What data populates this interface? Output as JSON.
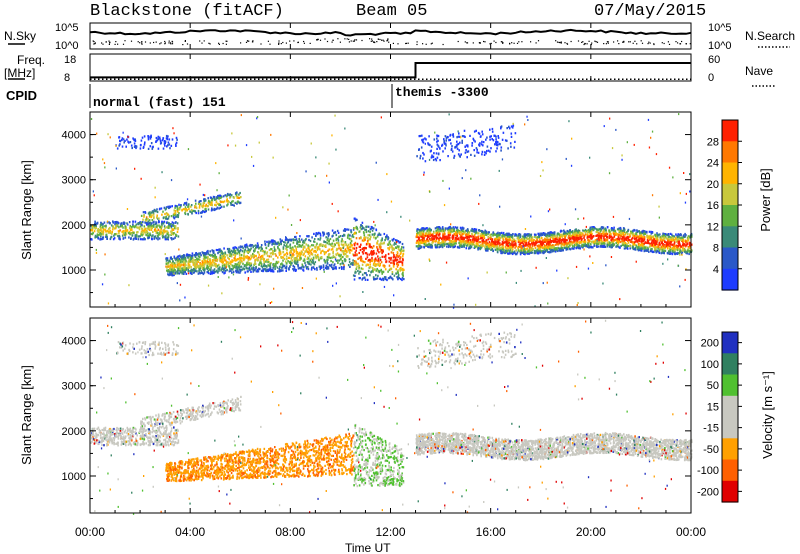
{
  "header": {
    "station": "Blackstone (fitACF)",
    "beam": "Beam 05",
    "date": "07/May/2015"
  },
  "left_labels": {
    "nsky": "N.Sky",
    "freq": "Freq.",
    "freq_unit": "[MHz]",
    "cpid": "CPID"
  },
  "right_labels": {
    "nsearch": "N.Search",
    "nave": "Nave"
  },
  "cpid_segments": [
    {
      "label": "normal (fast) 151",
      "start_hour": 0
    },
    {
      "label": "themis -3300",
      "start_hour": 12.25
    }
  ],
  "x_axis": {
    "label": "Time UT",
    "ticks": [
      "00:00",
      "04:00",
      "08:00",
      "12:00",
      "16:00",
      "20:00",
      "00:00"
    ]
  },
  "panels": {
    "power": {
      "ylabel": "Slant Range [km]",
      "cbar_label": "Power [dB]"
    },
    "velocity": {
      "ylabel": "Slant Range [km]",
      "cbar_label": "Velocity [m s⁻¹]"
    }
  },
  "colors": {
    "power_scale": [
      "#1e3cff",
      "#2a58c8",
      "#3a8a78",
      "#5fb040",
      "#c8c83c",
      "#ffb400",
      "#ff7800",
      "#ff2000"
    ],
    "velocity_scale": [
      "#2030c0",
      "#308060",
      "#50c030",
      "#c8c8c0",
      "#c8c8c0",
      "#ffa000",
      "#ff6000",
      "#e00000"
    ]
  },
  "chart_data": [
    {
      "type": "line",
      "name": "nsky_nsearch",
      "title": "",
      "left_ticks": [
        "10^5",
        "10^0"
      ],
      "right_ticks": [
        "10^5",
        "10^0"
      ],
      "series": [
        {
          "name": "N.Sky",
          "style": "solid"
        },
        {
          "name": "N.Search",
          "style": "dotted"
        }
      ]
    },
    {
      "type": "line",
      "name": "freq_nave",
      "left_ticks": [
        "18",
        "8"
      ],
      "right_ticks": [
        "60",
        "0"
      ],
      "x": [
        0,
        13,
        13,
        24
      ],
      "series": [
        {
          "name": "Freq.",
          "values": [
            10,
            10,
            18,
            18
          ]
        },
        {
          "name": "Nave",
          "values": [
            4,
            4,
            4,
            4
          ]
        }
      ]
    },
    {
      "type": "heatmap",
      "name": "power",
      "xlim": [
        0,
        24
      ],
      "ylim": [
        180,
        4500
      ],
      "yticks": [
        "1000",
        "2000",
        "3000",
        "4000"
      ],
      "colorbar": {
        "label": "Power [dB]",
        "ticks": [
          "4",
          "8",
          "12",
          "16",
          "20",
          "24",
          "28"
        ]
      }
    },
    {
      "type": "heatmap",
      "name": "velocity",
      "xlim": [
        0,
        24
      ],
      "ylim": [
        180,
        4500
      ],
      "yticks": [
        "1000",
        "2000",
        "3000",
        "4000"
      ],
      "colorbar": {
        "label": "Velocity [m s⁻¹]",
        "ticks": [
          "200",
          "100",
          "50",
          "15",
          "-15",
          "-50",
          "-100",
          "-200"
        ]
      }
    }
  ]
}
